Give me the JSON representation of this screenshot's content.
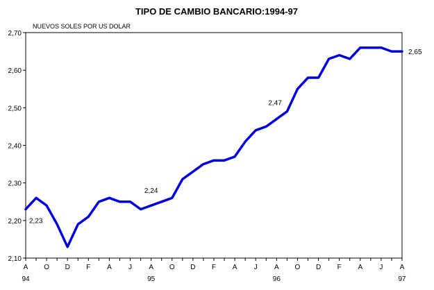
{
  "chart_data": {
    "type": "line",
    "title": "TIPO DE CAMBIO BANCARIO:1994-97",
    "units_label": "NUEVOS SOLES POR US DOLAR",
    "ylim": [
      2.1,
      2.7
    ],
    "yticks": [
      "2,10",
      "2,20",
      "2,30",
      "2,40",
      "2,50",
      "2,60",
      "2,70"
    ],
    "ytick_values": [
      2.1,
      2.2,
      2.3,
      2.4,
      2.5,
      2.6,
      2.7
    ],
    "grid": false,
    "month_labels": [
      "A",
      "O",
      "D",
      "F",
      "A",
      "J",
      "A",
      "O",
      "D",
      "F",
      "A",
      "J",
      "A",
      "O",
      "D",
      "F",
      "A",
      "J",
      "A"
    ],
    "month_label_indices": [
      0,
      2,
      4,
      6,
      8,
      10,
      12,
      14,
      16,
      18,
      20,
      22,
      24,
      26,
      28,
      30,
      32,
      34,
      36
    ],
    "year_labels": [
      "94",
      "95",
      "96",
      "97"
    ],
    "year_label_indices": [
      0,
      12,
      24,
      36
    ],
    "x": [
      "Aug 94",
      "Sep 94",
      "Oct 94",
      "Nov 94",
      "Dec 94",
      "Jan 95",
      "Feb 95",
      "Mar 95",
      "Apr 95",
      "May 95",
      "Jun 95",
      "Jul 95",
      "Aug 95",
      "Sep 95",
      "Oct 95",
      "Nov 95",
      "Dec 95",
      "Jan 96",
      "Feb 96",
      "Mar 96",
      "Apr 96",
      "May 96",
      "Jun 96",
      "Jul 96",
      "Aug 96",
      "Sep 96",
      "Oct 96",
      "Nov 96",
      "Dec 96",
      "Jan 97",
      "Feb 97",
      "Mar 97",
      "Apr 97",
      "May 97",
      "Jun 97",
      "Jul 97",
      "Aug 97"
    ],
    "series": [
      {
        "color": "#0000dd",
        "values": [
          2.23,
          2.26,
          2.24,
          2.19,
          2.13,
          2.19,
          2.21,
          2.25,
          2.26,
          2.25,
          2.25,
          2.23,
          2.24,
          2.25,
          2.26,
          2.31,
          2.33,
          2.35,
          2.36,
          2.36,
          2.37,
          2.41,
          2.44,
          2.45,
          2.47,
          2.49,
          2.55,
          2.58,
          2.58,
          2.63,
          2.64,
          2.63,
          2.66,
          2.66,
          2.66,
          2.65,
          2.65
        ]
      }
    ],
    "annotations": [
      {
        "text": "2,23",
        "index": 0,
        "value": 2.23,
        "place": "below-right"
      },
      {
        "text": "2,24",
        "index": 12,
        "value": 2.24,
        "place": "above"
      },
      {
        "text": "2,47",
        "index": 24,
        "value": 2.47,
        "place": "above-left"
      },
      {
        "text": "2,65",
        "index": 36,
        "value": 2.65,
        "place": "right"
      }
    ]
  }
}
